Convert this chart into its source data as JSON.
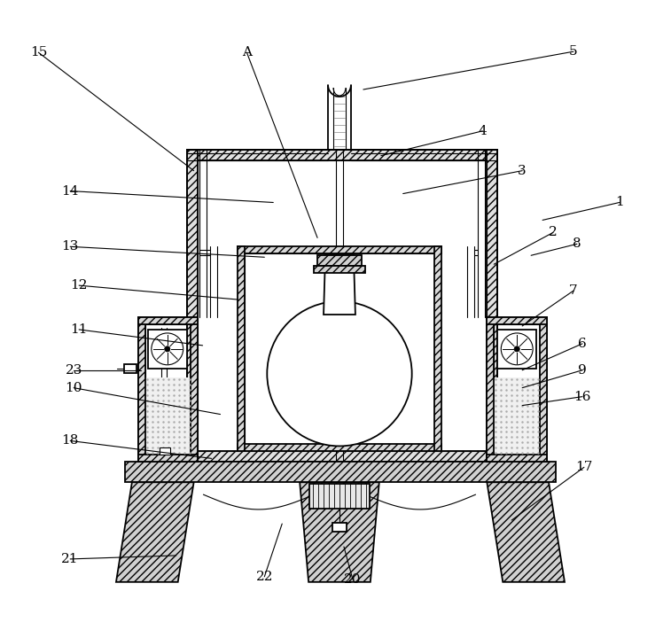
{
  "bg_color": "#ffffff",
  "line_color": "#000000",
  "fig_width": 7.57,
  "fig_height": 7.11,
  "labels_data": [
    [
      "1",
      613,
      248,
      700,
      228
    ],
    [
      "2",
      558,
      298,
      625,
      262
    ],
    [
      "3",
      455,
      218,
      590,
      192
    ],
    [
      "4",
      430,
      175,
      545,
      147
    ],
    [
      "5",
      410,
      100,
      648,
      57
    ],
    [
      "6",
      590,
      418,
      658,
      388
    ],
    [
      "7",
      590,
      368,
      648,
      328
    ],
    [
      "8",
      600,
      288,
      652,
      275
    ],
    [
      "9",
      590,
      438,
      658,
      418
    ],
    [
      "10",
      248,
      468,
      82,
      438
    ],
    [
      "11",
      228,
      390,
      88,
      372
    ],
    [
      "12",
      268,
      338,
      88,
      322
    ],
    [
      "13",
      298,
      290,
      78,
      278
    ],
    [
      "14",
      308,
      228,
      78,
      215
    ],
    [
      "15",
      218,
      192,
      42,
      58
    ],
    [
      "16",
      590,
      458,
      658,
      448
    ],
    [
      "17",
      578,
      588,
      660,
      528
    ],
    [
      "18",
      238,
      518,
      78,
      498
    ],
    [
      "20",
      388,
      618,
      398,
      655
    ],
    [
      "21",
      198,
      628,
      78,
      632
    ],
    [
      "22",
      318,
      592,
      298,
      652
    ],
    [
      "23",
      158,
      418,
      82,
      418
    ],
    [
      "A",
      358,
      268,
      278,
      58
    ]
  ]
}
